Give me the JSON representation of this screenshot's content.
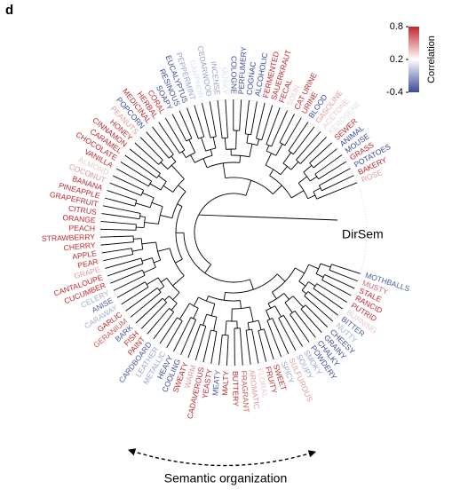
{
  "panel_label": "d",
  "center_label": "DirSem",
  "bottom_label": "Semantic organization",
  "colorbar": {
    "title": "Correlation",
    "lim": [
      -0.4,
      0.8
    ],
    "ticks": [
      0.8,
      0.2,
      -0.4
    ],
    "colors": [
      "#3b4a9a",
      "#ffffff",
      "#c0272d"
    ]
  },
  "leaves": [
    {
      "text": "MOTHBALLS",
      "color": "#4a5aa0"
    },
    {
      "text": "MUSTY",
      "color": "#c86a78"
    },
    {
      "text": "STALE",
      "color": "#c0272d"
    },
    {
      "text": "RANCID",
      "color": "#c0272d"
    },
    {
      "text": "PUTRID",
      "color": "#c0272d"
    },
    {
      "text": "BURNING",
      "color": "#e6c6d2"
    },
    {
      "text": "BITTER",
      "color": "#4a5aa0"
    },
    {
      "text": "NUTTY",
      "color": "#a6acd2"
    },
    {
      "text": "CHEESY",
      "color": "#3b4a9a"
    },
    {
      "text": "GRAINY",
      "color": "#3b4a9a"
    },
    {
      "text": "CHALKY",
      "color": "#3b4a9a"
    },
    {
      "text": "POWDERY",
      "color": "#3b4a9a"
    },
    {
      "text": "SMOKY",
      "color": "#9aa2cc"
    },
    {
      "text": "SOUPY",
      "color": "#9aa2cc"
    },
    {
      "text": "SULFUROUS",
      "color": "#e09a9a"
    },
    {
      "text": "SPICY",
      "color": "#9aa2cc"
    },
    {
      "text": "SWEET",
      "color": "#c0272d"
    },
    {
      "text": "FRUITY",
      "color": "#c0272d"
    },
    {
      "text": "FLORAL",
      "color": "#e8c8cc"
    },
    {
      "text": "AROMATIC",
      "color": "#e09a9a"
    },
    {
      "text": "FRAGRANT",
      "color": "#d05a5a"
    },
    {
      "text": "BUTTERY",
      "color": "#c0272d"
    },
    {
      "text": "MALTY",
      "color": "#c0272d"
    },
    {
      "text": "MEATY",
      "color": "#4a5aa0"
    },
    {
      "text": "YEASTY",
      "color": "#c0272d"
    },
    {
      "text": "CADAVEROUS",
      "color": "#c0272d"
    },
    {
      "text": "WARM",
      "color": "#e09a9a"
    },
    {
      "text": "SWEATY",
      "color": "#c0272d"
    },
    {
      "text": "COOLING",
      "color": "#3b4a9a"
    },
    {
      "text": "HEAVY",
      "color": "#3b4a9a"
    },
    {
      "text": "METALLIC",
      "color": "#9aa2cc"
    },
    {
      "text": "LEATHER",
      "color": "#9aa2cc"
    },
    {
      "text": "CARDBOARD",
      "color": "#4a5aa0"
    },
    {
      "text": "PAINT",
      "color": "#c0272d"
    },
    {
      "text": "FISH",
      "color": "#c0272d"
    },
    {
      "text": "BARK",
      "color": "#4a5aa0"
    },
    {
      "text": "GERANIUM",
      "color": "#d05a5a"
    },
    {
      "text": "GARLIC",
      "color": "#c0272d"
    },
    {
      "text": "CARAWAY",
      "color": "#a6acd2"
    },
    {
      "text": "ANISE",
      "color": "#4a5aa0"
    },
    {
      "text": "CELERY",
      "color": "#a6acd2"
    },
    {
      "text": "CUCUMBER",
      "color": "#c0272d"
    },
    {
      "text": "CANTALOUPE",
      "color": "#c0272d"
    },
    {
      "text": "GRAPE",
      "color": "#e09a9a"
    },
    {
      "text": "PEAR",
      "color": "#c0272d"
    },
    {
      "text": "APPLE",
      "color": "#c0272d"
    },
    {
      "text": "CHERRY",
      "color": "#c0272d"
    },
    {
      "text": "STRAWBERRY",
      "color": "#c0272d"
    },
    {
      "text": "PEACH",
      "color": "#c0272d"
    },
    {
      "text": "ORANGE",
      "color": "#c0272d"
    },
    {
      "text": "CITRUS",
      "color": "#c0272d"
    },
    {
      "text": "GRAPEFRUIT",
      "color": "#c0272d"
    },
    {
      "text": "PINEAPPLE",
      "color": "#c0272d"
    },
    {
      "text": "BANANA",
      "color": "#c0272d"
    },
    {
      "text": "COCONUT",
      "color": "#e09a9a"
    },
    {
      "text": "ALMOND",
      "color": "#e8c8cc"
    },
    {
      "text": "VANILLA",
      "color": "#c0272d"
    },
    {
      "text": "CHOCOLATE",
      "color": "#c0272d"
    },
    {
      "text": "CARAMEL",
      "color": "#c0272d"
    },
    {
      "text": "CINNAMON",
      "color": "#c0272d"
    },
    {
      "text": "HONEY",
      "color": "#c0272d"
    },
    {
      "text": "PEANUTS",
      "color": "#e09a9a"
    },
    {
      "text": "POPCORN",
      "color": "#3b4a9a"
    },
    {
      "text": "MEDICINAL",
      "color": "#c0272d"
    },
    {
      "text": "HERBAL",
      "color": "#c0272d"
    },
    {
      "text": "CORAL",
      "color": "#c0272d"
    },
    {
      "text": "SOAPY",
      "color": "#3b4a9a"
    },
    {
      "text": "RESINOUS",
      "color": "#3b4a9a"
    },
    {
      "text": "EUCALYPTUS",
      "color": "#3b4a9a"
    },
    {
      "text": "PEPPERMINT",
      "color": "#9aa2cc"
    },
    {
      "text": "CAMPHOR",
      "color": "#dcdfee"
    },
    {
      "text": "CEDARWOOD",
      "color": "#9aa2cc"
    },
    {
      "text": "INCENSE",
      "color": "#9aa2cc"
    },
    {
      "text": "MUSKY",
      "color": "#dcdfee"
    },
    {
      "text": "COLOGNE",
      "color": "#3b4a9a"
    },
    {
      "text": "PERFUMERY",
      "color": "#3b4a9a"
    },
    {
      "text": "COGNAC",
      "color": "#3b4a9a"
    },
    {
      "text": "ALCOHOLIC",
      "color": "#3b4a9a"
    },
    {
      "text": "FERMENTED",
      "color": "#c0272d"
    },
    {
      "text": "SAUERKRAUT",
      "color": "#c0272d"
    },
    {
      "text": "FECAL",
      "color": "#c0272d"
    },
    {
      "text": "SOUR",
      "color": "#e8c8cc"
    },
    {
      "text": "CAT URINE",
      "color": "#c0272d"
    },
    {
      "text": "URINE",
      "color": "#c0272d"
    },
    {
      "text": "BLOOD",
      "color": "#3b4a9a"
    },
    {
      "text": "GASOLINE",
      "color": "#e09a9a"
    },
    {
      "text": "ACETONE",
      "color": "#e8c8cc"
    },
    {
      "text": "KEROSENE",
      "color": "#dcdfee"
    },
    {
      "text": "SEWER",
      "color": "#c0272d"
    },
    {
      "text": "ANIMAL",
      "color": "#3b4a9a"
    },
    {
      "text": "MOUSE",
      "color": "#3b4a9a"
    },
    {
      "text": "GRASS",
      "color": "#c0272d"
    },
    {
      "text": "POTATOES",
      "color": "#3b4a9a"
    },
    {
      "text": "BAKERY",
      "color": "#c0272d"
    },
    {
      "text": "ROSE",
      "color": "#e09a9a"
    }
  ]
}
